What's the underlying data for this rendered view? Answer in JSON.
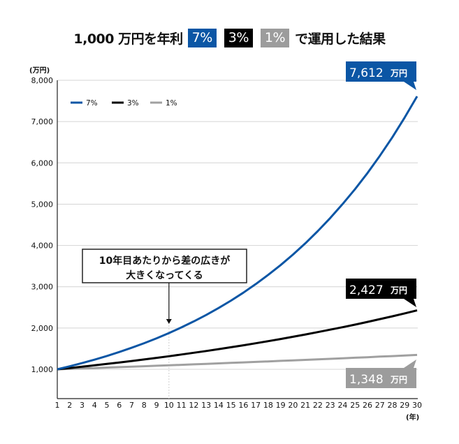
{
  "title": {
    "prefix": "1,000 万円を年利",
    "badges": [
      {
        "label": "7%",
        "color": "#0b56a5"
      },
      {
        "label": "3%",
        "color": "#000000"
      },
      {
        "label": "1%",
        "color": "#9c9c9c"
      }
    ],
    "suffix": "で運用した結果"
  },
  "chart_data": {
    "type": "line",
    "title": "1,000 万円を年利 7% 3% 1% で運用した結果",
    "xlabel": "(年)",
    "ylabel": "(万円)",
    "x": [
      1,
      2,
      3,
      4,
      5,
      6,
      7,
      8,
      9,
      10,
      11,
      12,
      13,
      14,
      15,
      16,
      17,
      18,
      19,
      20,
      21,
      22,
      23,
      24,
      25,
      26,
      27,
      28,
      29,
      30
    ],
    "x_tick_labels": [
      "1",
      "2",
      "3",
      "4",
      "5",
      "6",
      "7",
      "8",
      "9",
      "10",
      "11",
      "12",
      "13",
      "14",
      "15",
      "16",
      "17",
      "18",
      "19",
      "20",
      "21",
      "22",
      "23",
      "24",
      "25",
      "26",
      "27",
      "28",
      "29",
      "30"
    ],
    "y_ticks": [
      1000,
      2000,
      3000,
      4000,
      5000,
      6000,
      7000,
      8000
    ],
    "y_tick_labels": [
      "1,000",
      "2,000",
      "3,000",
      "4,000",
      "5,000",
      "6,000",
      "7,000",
      "8,000"
    ],
    "ylim": [
      1000,
      8000
    ],
    "grid": true,
    "legend_position": "top-left",
    "series": [
      {
        "name": "7%",
        "color": "#0b56a5",
        "values": [
          1000,
          1073,
          1150,
          1234,
          1323,
          1419,
          1522,
          1632,
          1751,
          1877,
          2014,
          2160,
          2316,
          2484,
          2664,
          2857,
          3064,
          3287,
          3525,
          3780,
          4054,
          4348,
          4664,
          5002,
          5364,
          5753,
          6170,
          6618,
          7097,
          7612
        ],
        "end_label": "7,612",
        "end_unit": "万円"
      },
      {
        "name": "3%",
        "color": "#000000",
        "values": [
          1000,
          1031,
          1063,
          1096,
          1130,
          1165,
          1201,
          1239,
          1277,
          1317,
          1358,
          1400,
          1443,
          1488,
          1534,
          1582,
          1631,
          1682,
          1734,
          1788,
          1843,
          1901,
          1960,
          2020,
          2083,
          2148,
          2215,
          2283,
          2354,
          2427
        ],
        "end_label": "2,427",
        "end_unit": "万円"
      },
      {
        "name": "1%",
        "color": "#a0a0a0",
        "values": [
          1000,
          1010,
          1021,
          1031,
          1042,
          1053,
          1064,
          1075,
          1086,
          1097,
          1108,
          1120,
          1131,
          1143,
          1155,
          1167,
          1179,
          1191,
          1204,
          1216,
          1229,
          1241,
          1254,
          1267,
          1280,
          1293,
          1307,
          1320,
          1334,
          1348
        ],
        "end_label": "1,348",
        "end_unit": "万円"
      }
    ],
    "annotations": [
      {
        "text_lines": [
          "10年目あたりから差の広きが",
          "大きくなってくる"
        ],
        "x": 10
      }
    ]
  }
}
